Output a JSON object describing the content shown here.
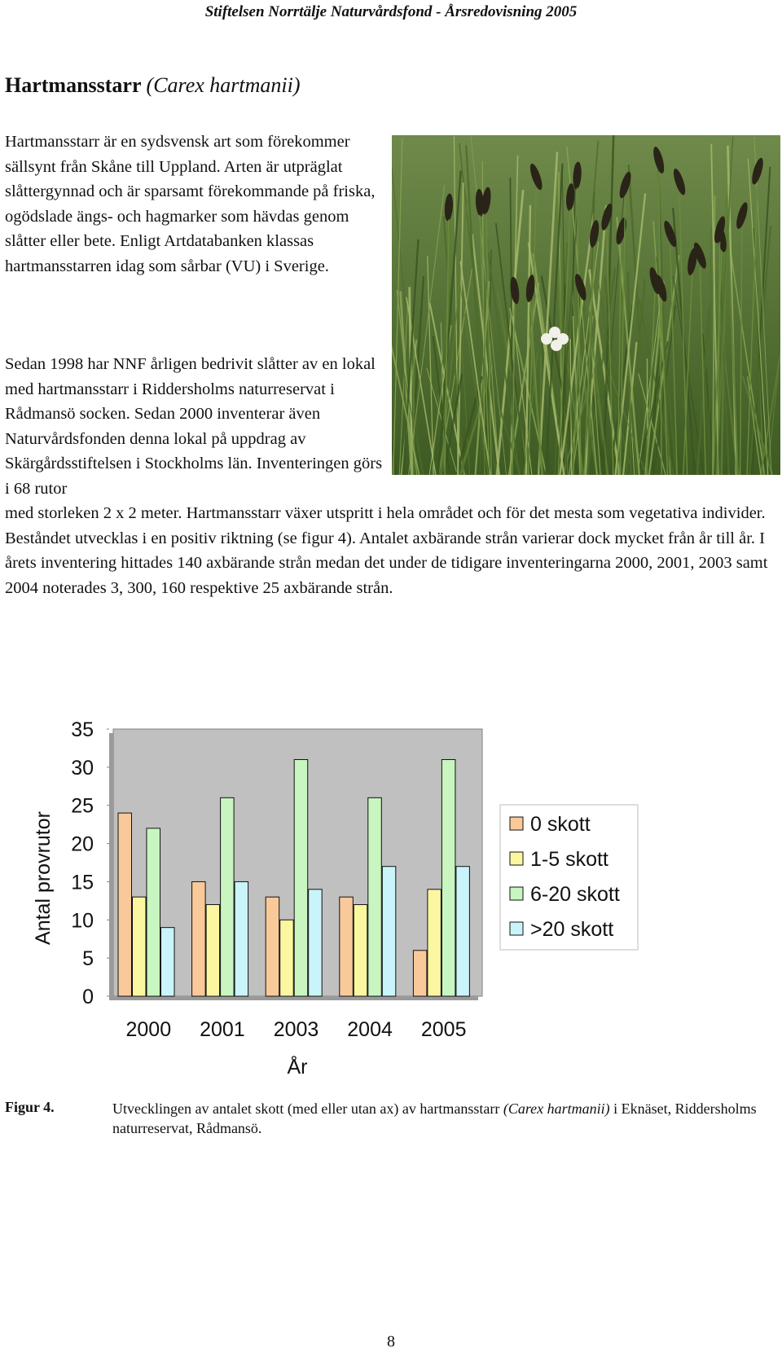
{
  "header": "Stiftelsen Norrtälje Naturvårdsfond - Årsredovisning 2005",
  "title": {
    "name": "Hartmansstarr ",
    "latin": "(Carex hartmanii)"
  },
  "paragraphs": {
    "p1": "Hartmansstarr är en sydsvensk art som förekommer sällsynt från Skåne till Uppland. Arten är utpräglat slåttergynnad och är sparsamt förekommande på friska, ogödslade ängs- och hagmarker som hävdas genom slåtter eller bete. Enligt Artdatabanken klassas hartmansstarren idag som sårbar (VU) i Sverige.",
    "p2": "Sedan 1998 har NNF årligen bedrivit slåtter av en lokal med hartmansstarr i Riddersholms naturreservat i Rådmansö socken. Sedan 2000 inventerar även Naturvårdsfonden denna lokal på uppdrag av Skärgårdsstiftelsen i Stockholms län. Inventeringen görs i 68 rutor",
    "p3": "med storleken 2 x 2 meter. Hartmansstarr växer utspritt i hela området och för det mesta som vegetativa individer. Beståndet utvecklas i en positiv riktning (se figur 4). Antalet axbärande strån varierar dock mycket från år till år. I årets inventering hittades 140 axbärande strån medan det under de tidigare inventeringarna 2000, 2001, 2003 samt 2004 noterades 3, 300, 160 respektive 25 axbärande strån."
  },
  "photo_colors": {
    "sky": "#6f8a4a",
    "grass": "#3d5a22",
    "spike": "#2a2418",
    "flower": "#f2f0ea"
  },
  "chart_data": {
    "type": "bar",
    "categories": [
      "2000",
      "2001",
      "2003",
      "2004",
      "2005"
    ],
    "series": [
      {
        "name": "0 skott",
        "values": [
          24,
          15,
          13,
          13,
          6
        ],
        "color": "#f9c99a"
      },
      {
        "name": "1-5 skott",
        "values": [
          13,
          12,
          10,
          12,
          14
        ],
        "color": "#fbf7a0"
      },
      {
        "name": "6-20 skott",
        "values": [
          22,
          26,
          31,
          26,
          31
        ],
        "color": "#c8f5c0"
      },
      {
        "name": ">20 skott",
        "values": [
          9,
          15,
          14,
          17,
          17
        ],
        "color": "#c9f4fa"
      }
    ],
    "xlabel": "År",
    "ylabel": "Antal provrutor",
    "ylim": [
      0,
      35
    ],
    "yticks": [
      "0",
      "5",
      "10",
      "15",
      "20",
      "25",
      "30",
      "35"
    ],
    "plot_background": "#c0c0c0",
    "legend_position": "right",
    "grid": false
  },
  "caption": {
    "label": "Figur 4.",
    "text_before": "Utvecklingen av antalet skott (med eller utan ax) av hartmansstarr ",
    "text_italic": "(Carex hartmanii)",
    "text_after": " i Eknäset, Riddersholms naturreservat, Rådmansö."
  },
  "page_number": "8"
}
